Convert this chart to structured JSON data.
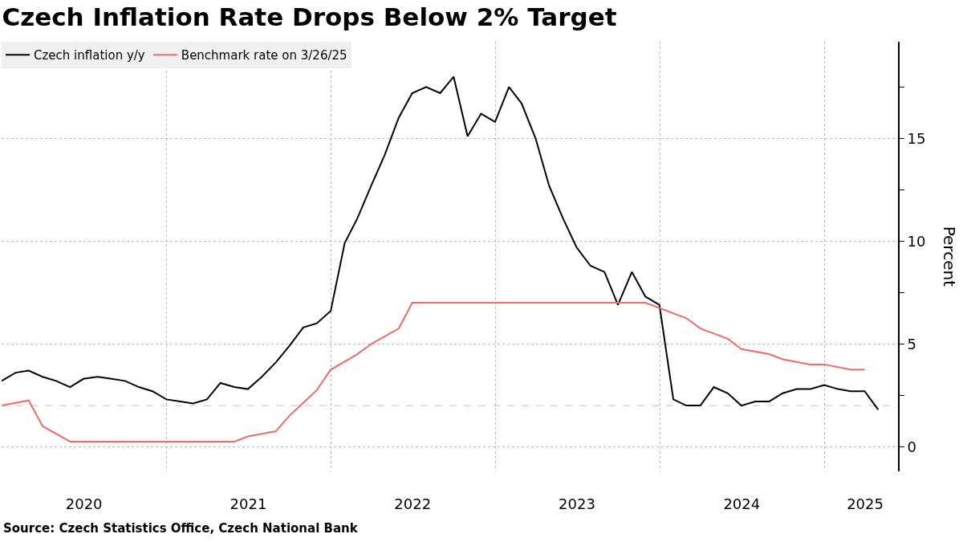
{
  "chart_data": {
    "type": "line",
    "title": "Czech Inflation Rate Drops Below 2% Target",
    "ylabel": "Percent",
    "annotations": [
      "Source: Czech Statistics Office, Czech National Bank"
    ],
    "x": [
      "2019-12-31",
      "2020-01-31",
      "2020-02-29",
      "2020-03-31",
      "2020-04-30",
      "2020-05-31",
      "2020-06-30",
      "2020-07-31",
      "2020-08-31",
      "2020-09-30",
      "2020-10-31",
      "2020-11-30",
      "2020-12-31",
      "2021-01-31",
      "2021-02-28",
      "2021-03-31",
      "2021-04-30",
      "2021-05-31",
      "2021-06-30",
      "2021-07-31",
      "2021-08-31",
      "2021-09-30",
      "2021-10-31",
      "2021-11-30",
      "2021-12-31",
      "2022-01-31",
      "2022-02-28",
      "2022-03-31",
      "2022-04-30",
      "2022-05-31",
      "2022-06-30",
      "2022-07-31",
      "2022-08-31",
      "2022-09-30",
      "2022-10-31",
      "2022-11-30",
      "2022-12-31",
      "2023-01-31",
      "2023-02-28",
      "2023-03-31",
      "2023-04-30",
      "2023-05-31",
      "2023-06-30",
      "2023-07-31",
      "2023-08-31",
      "2023-09-30",
      "2023-10-31",
      "2023-11-30",
      "2023-12-31",
      "2024-01-31",
      "2024-02-29",
      "2024-03-31",
      "2024-04-30",
      "2024-05-31",
      "2024-06-30",
      "2024-07-31",
      "2024-08-31",
      "2024-09-30",
      "2024-10-31",
      "2024-11-30",
      "2024-12-31",
      "2025-01-31",
      "2025-02-28",
      "2025-03-31",
      "2025-04-30"
    ],
    "series": [
      {
        "name": "Czech inflation y/y",
        "color": "#000000",
        "values": [
          3.2,
          3.6,
          3.7,
          3.4,
          3.2,
          2.9,
          3.3,
          3.4,
          3.3,
          3.2,
          2.9,
          2.7,
          2.3,
          2.2,
          2.1,
          2.3,
          3.1,
          2.9,
          2.8,
          3.4,
          4.1,
          4.9,
          5.8,
          6.0,
          6.6,
          9.9,
          11.1,
          12.7,
          14.2,
          16.0,
          17.2,
          17.5,
          17.2,
          18.0,
          15.1,
          16.2,
          15.8,
          17.5,
          16.7,
          15.0,
          12.7,
          11.1,
          9.7,
          8.8,
          8.5,
          6.9,
          8.5,
          7.3,
          6.9,
          2.3,
          2.0,
          2.0,
          2.9,
          2.6,
          2.0,
          2.2,
          2.2,
          2.6,
          2.8,
          2.8,
          3.0,
          2.8,
          2.7,
          2.7,
          1.8
        ]
      },
      {
        "name": "Benchmark rate on 3/26/25",
        "color": "#f26b6b",
        "x": [
          "2019-12-31",
          "2020-02-29",
          "2020-03-31",
          "2020-05-31",
          "2021-05-31",
          "2021-06-30",
          "2021-08-31",
          "2021-09-30",
          "2021-11-30",
          "2021-12-31",
          "2022-02-28",
          "2022-03-31",
          "2022-05-31",
          "2022-06-30",
          "2023-11-30",
          "2024-02-29",
          "2024-03-31",
          "2024-05-31",
          "2024-06-30",
          "2024-08-31",
          "2024-09-30",
          "2024-11-30",
          "2024-12-31",
          "2025-02-28",
          "2025-03-31"
        ],
        "values": [
          2.0,
          2.25,
          1.0,
          0.25,
          0.25,
          0.5,
          0.75,
          1.5,
          2.75,
          3.75,
          4.5,
          5.0,
          5.75,
          7.0,
          7.0,
          6.25,
          5.75,
          5.25,
          4.75,
          4.5,
          4.25,
          4.0,
          4.0,
          3.75,
          3.75
        ]
      }
    ],
    "xlim": [
      "2019-12-31",
      "2025-06-13"
    ],
    "xticks": [
      {
        "value": "2020-07-01",
        "label": "2020"
      },
      {
        "value": "2021-01-01",
        "label": null
      },
      {
        "value": "2021-07-01",
        "label": "2021"
      },
      {
        "value": "2022-01-01",
        "label": null
      },
      {
        "value": "2022-07-01",
        "label": "2022"
      },
      {
        "value": "2023-01-01",
        "label": null
      },
      {
        "value": "2023-07-01",
        "label": "2023"
      },
      {
        "value": "2024-01-01",
        "label": null
      },
      {
        "value": "2024-07-01",
        "label": "2024"
      },
      {
        "value": "2025-01-01",
        "label": null
      },
      {
        "value": "2025-04-01",
        "label": "2025"
      }
    ],
    "ylim": [
      -1.2,
      19.7
    ],
    "yticks": [
      0,
      {
        "value": 2.5,
        "label": null
      },
      5,
      {
        "value": 7.5,
        "label": null
      },
      10,
      {
        "value": 12.5,
        "label": null
      },
      15,
      {
        "value": 17.5,
        "label": null
      }
    ],
    "ref_lines": [
      {
        "axis": "y",
        "value": 2,
        "color": "#e6b3c3",
        "line_style": "dashed"
      }
    ],
    "grid": true,
    "legend": "top left",
    "line_style": "solid",
    "marker": "none"
  }
}
